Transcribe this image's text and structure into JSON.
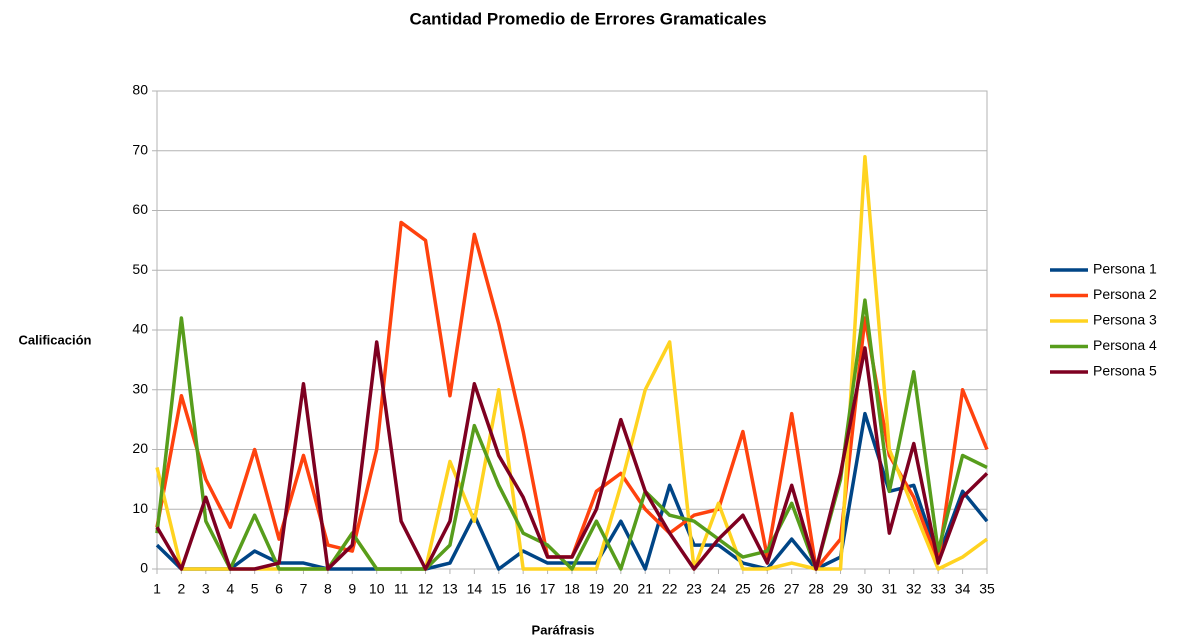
{
  "chart_data": {
    "type": "line",
    "title": "Cantidad Promedio de Errores Gramaticales",
    "x_label": "Paráfrasis",
    "y_label": "Calificación",
    "categories": [
      "1",
      "2",
      "3",
      "4",
      "5",
      "6",
      "7",
      "8",
      "9",
      "10",
      "11",
      "12",
      "13",
      "14",
      "15",
      "16",
      "17",
      "18",
      "19",
      "20",
      "21",
      "22",
      "23",
      "24",
      "25",
      "26",
      "27",
      "28",
      "29",
      "30",
      "31",
      "32",
      "33",
      "34",
      "35"
    ],
    "series": [
      {
        "name": "Persona 1",
        "color": "#004586",
        "values": [
          4,
          0,
          0,
          0,
          3,
          1,
          1,
          0,
          0,
          0,
          0,
          0,
          1,
          9,
          0,
          3,
          1,
          1,
          1,
          8,
          0,
          14,
          4,
          4,
          1,
          0,
          5,
          0,
          2,
          26,
          13,
          14,
          2,
          13,
          8
        ]
      },
      {
        "name": "Persona 2",
        "color": "#ff420e",
        "values": [
          7,
          29,
          15,
          7,
          20,
          5,
          19,
          4,
          3,
          20,
          58,
          55,
          29,
          56,
          41,
          23,
          2,
          2,
          13,
          16,
          10,
          6,
          9,
          10,
          23,
          2,
          26,
          0,
          5,
          42,
          19,
          12,
          1,
          30,
          20
        ]
      },
      {
        "name": "Persona 3",
        "color": "#ffd320",
        "values": [
          17,
          0,
          0,
          0,
          0,
          0,
          0,
          0,
          6,
          0,
          0,
          0,
          18,
          8,
          30,
          0,
          0,
          0,
          0,
          14,
          30,
          38,
          0,
          11,
          0,
          0,
          1,
          0,
          0,
          69,
          20,
          10,
          0,
          2,
          5
        ]
      },
      {
        "name": "Persona 4",
        "color": "#579d1c",
        "values": [
          6,
          42,
          8,
          0,
          9,
          0,
          0,
          0,
          6,
          0,
          0,
          0,
          4,
          24,
          14,
          6,
          4,
          0,
          8,
          0,
          13,
          9,
          8,
          5,
          2,
          3,
          11,
          0,
          15,
          45,
          13,
          33,
          3,
          19,
          17
        ]
      },
      {
        "name": "Persona 5",
        "color": "#7e0021",
        "values": [
          7,
          0,
          12,
          0,
          0,
          1,
          31,
          0,
          4,
          38,
          8,
          0,
          8,
          31,
          19,
          12,
          2,
          2,
          10,
          25,
          13,
          6,
          0,
          5,
          9,
          1,
          14,
          0,
          16,
          37,
          6,
          21,
          1,
          12,
          16
        ]
      }
    ],
    "ylim": [
      0,
      80
    ],
    "yticks": [
      0,
      10,
      20,
      30,
      40,
      50,
      60,
      70,
      80
    ],
    "grid": true,
    "legend": "right"
  }
}
